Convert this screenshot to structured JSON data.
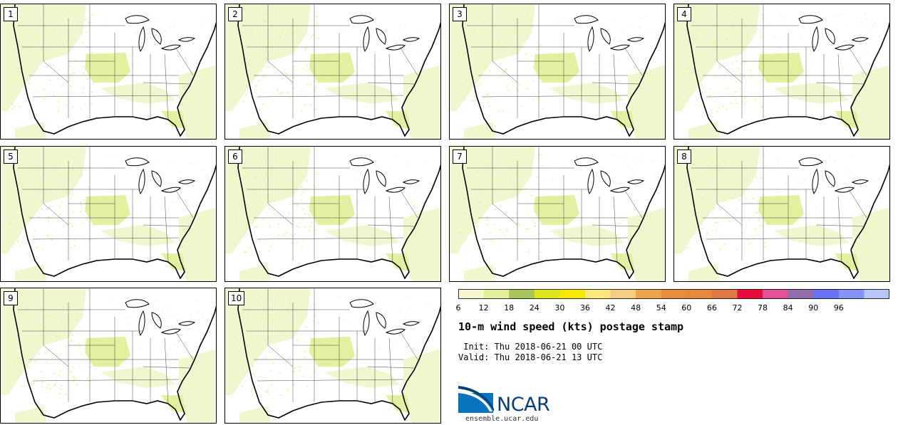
{
  "panels": [
    {
      "label": "1"
    },
    {
      "label": "2"
    },
    {
      "label": "3"
    },
    {
      "label": "4"
    },
    {
      "label": "5"
    },
    {
      "label": "6"
    },
    {
      "label": "7"
    },
    {
      "label": "8"
    },
    {
      "label": "9"
    },
    {
      "label": "10"
    }
  ],
  "colorbar": {
    "ticks": [
      "6",
      "12",
      "18",
      "24",
      "30",
      "36",
      "42",
      "48",
      "54",
      "60",
      "66",
      "72",
      "78",
      "84",
      "90",
      "96"
    ],
    "colors": [
      "#f3f6cf",
      "#e2ef9b",
      "#a8c55c",
      "#dde51e",
      "#f6e800",
      "#fbe680",
      "#f5cd80",
      "#eda451",
      "#e88c3a",
      "#e5893f",
      "#dd7746",
      "#ea0a3d",
      "#e25095",
      "#946cae",
      "#6672f0",
      "#8393f6",
      "#b4c6f6"
    ]
  },
  "title": "10-m wind speed (kts) postage stamp",
  "init_text": " Init: Thu 2018-06-21 00 UTC",
  "valid_text": "Valid: Thu 2018-06-21 13 UTC",
  "logo_text": "NCAR",
  "url_text": "ensemble.ucar.edu",
  "colors": {
    "light_wind": "#f1f6cf",
    "mid_wind": "#e4f0a0",
    "ncar_blue": "#0a3d76"
  }
}
